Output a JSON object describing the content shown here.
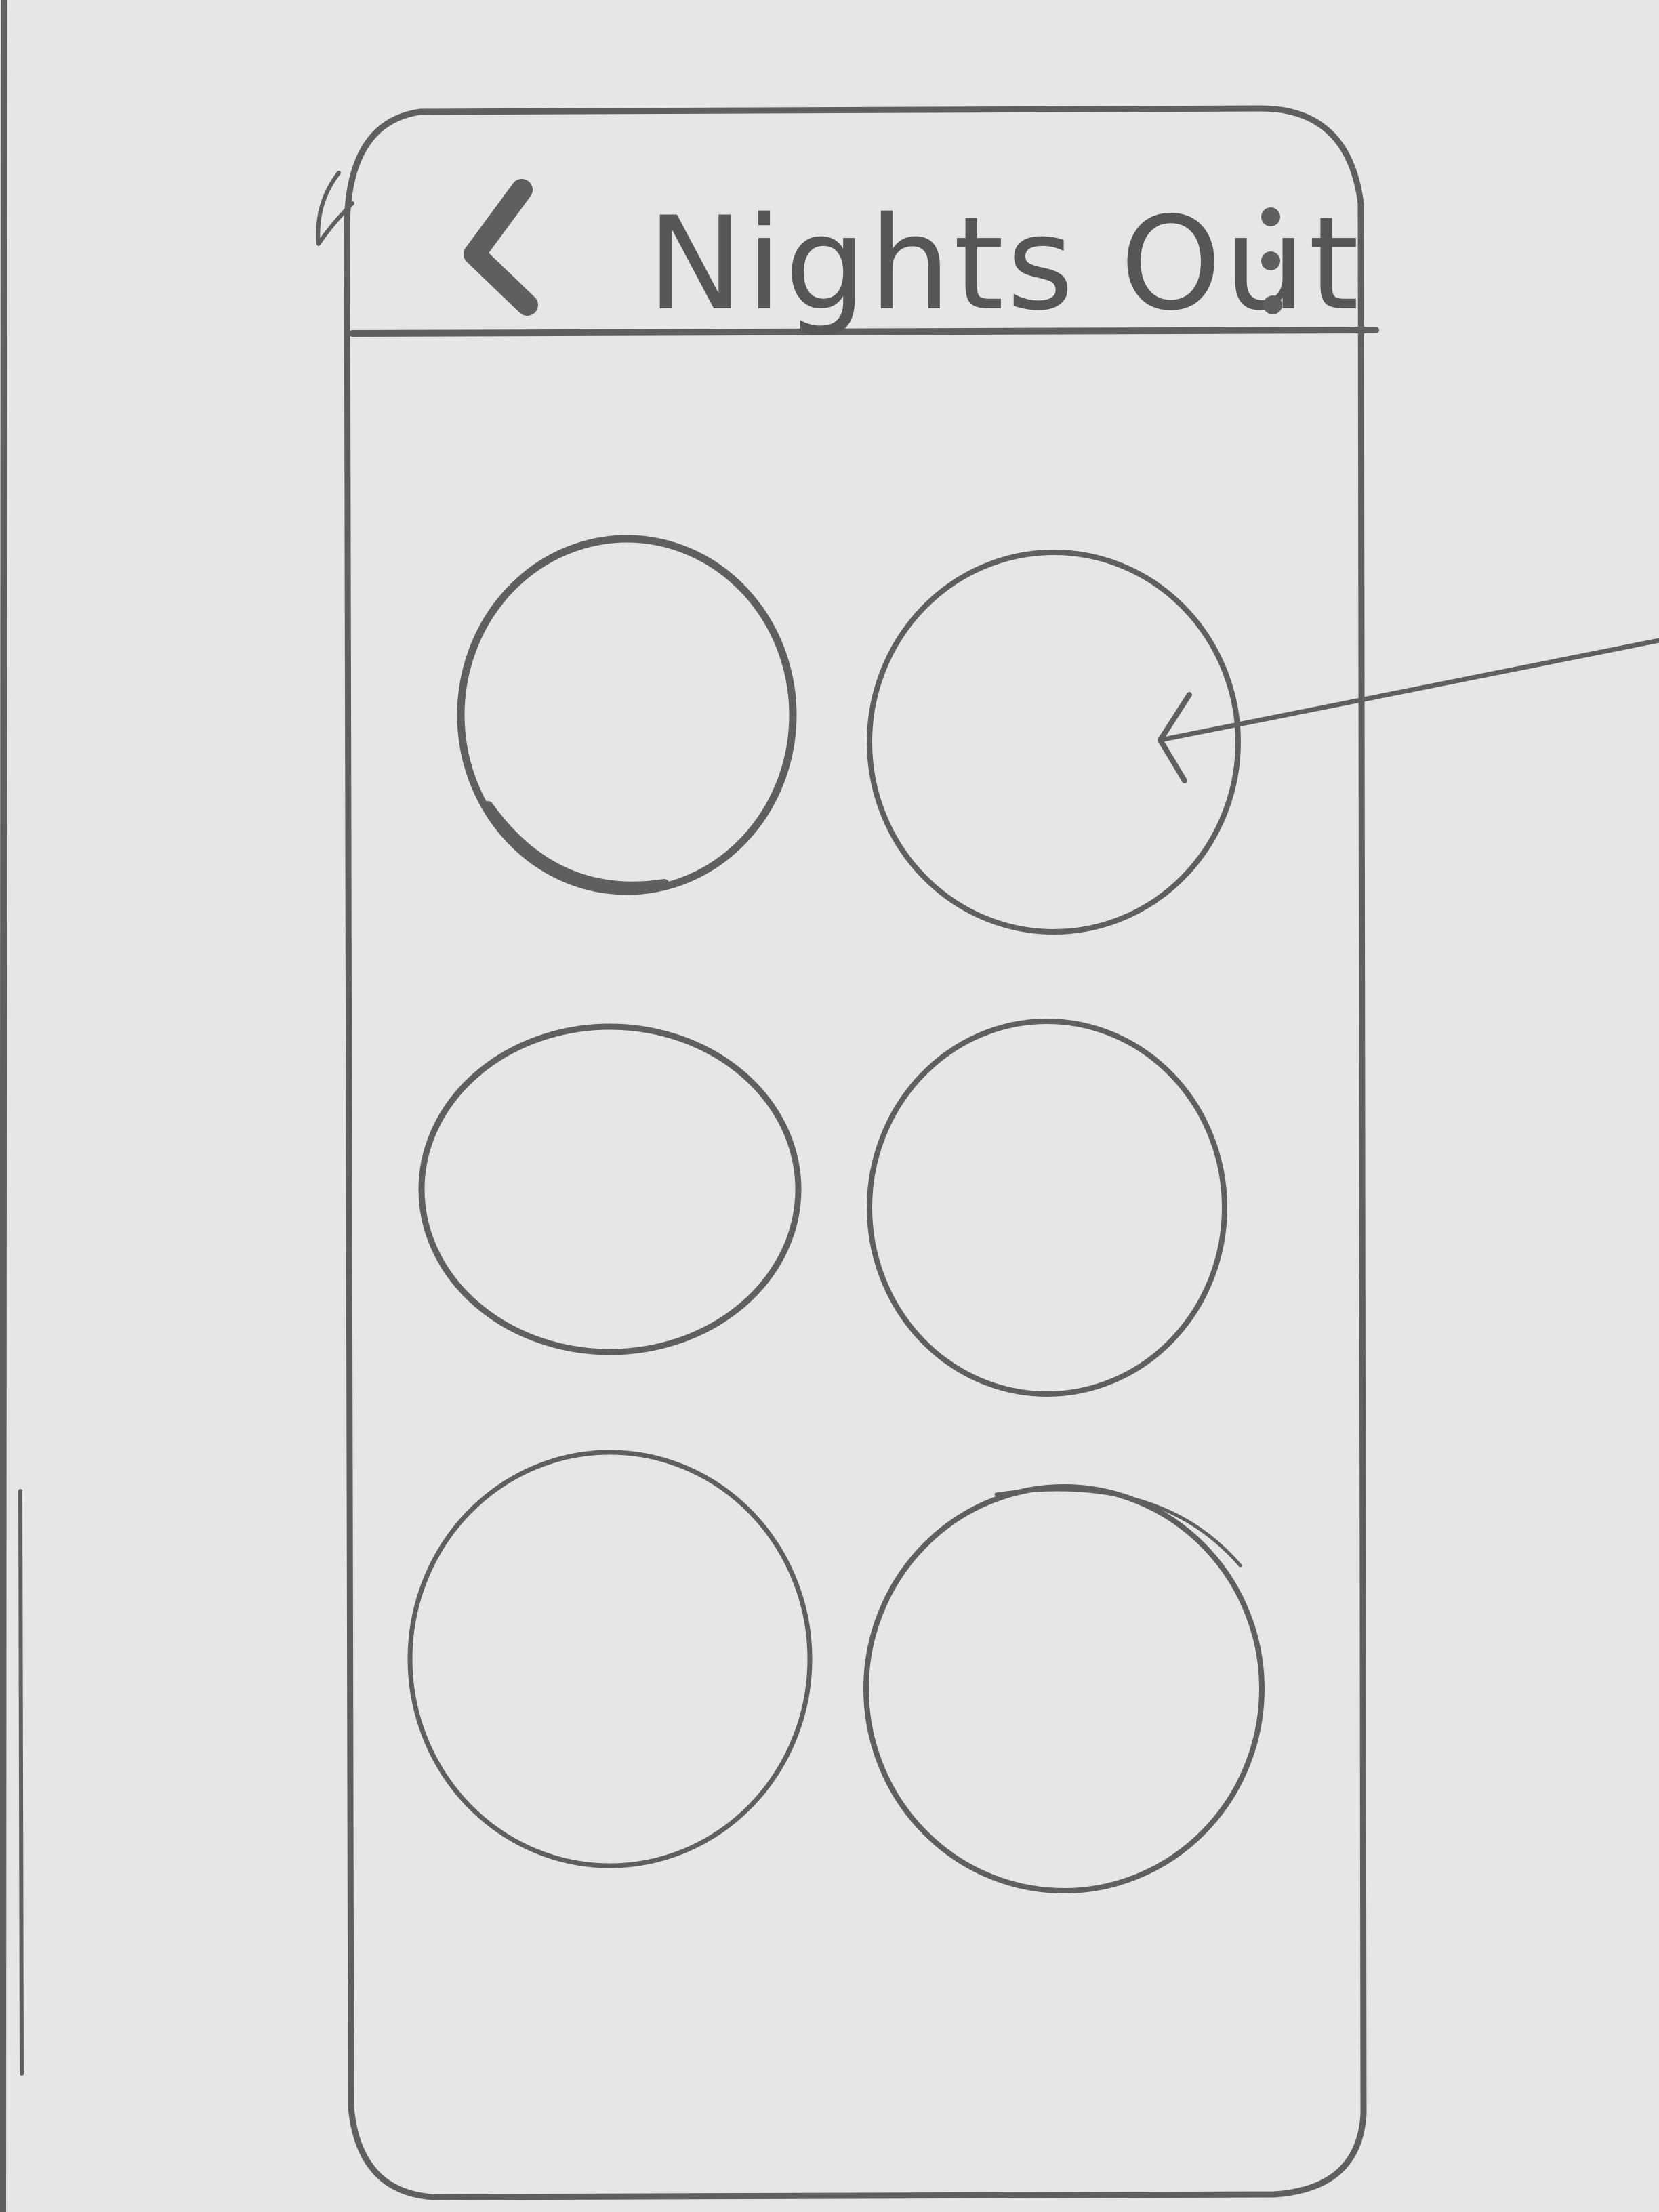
{
  "header": {
    "title": "Nights Out",
    "back_icon": "chevron-left-icon",
    "menu_icon": "more-vertical-icon"
  },
  "grid": {
    "items": [
      {
        "label": ""
      },
      {
        "label": ""
      },
      {
        "label": ""
      },
      {
        "label": ""
      },
      {
        "label": ""
      },
      {
        "label": ""
      }
    ]
  },
  "annotation": {
    "icon": "pointer-arrow-icon"
  },
  "colors": {
    "paper": "#e6e6e4",
    "ink": "#5e6060"
  }
}
